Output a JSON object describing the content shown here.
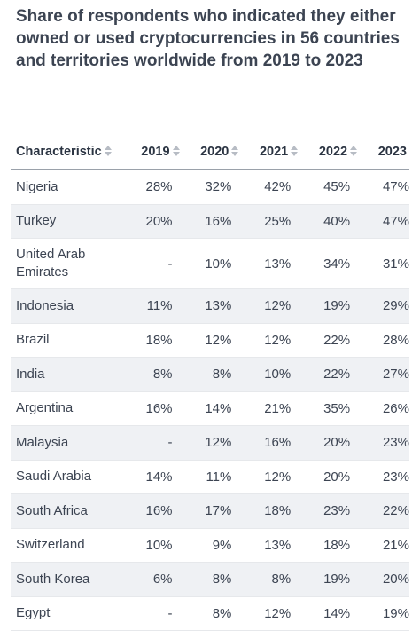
{
  "title": "Share of respondents who indicated they either owned or used cryptocurrencies in 56 countries and territories worldwide from 2019 to 2023",
  "table": {
    "headers": [
      "Characteristic",
      "2019",
      "2020",
      "2021",
      "2022",
      "2023"
    ],
    "rows": [
      [
        "Nigeria",
        "28%",
        "32%",
        "42%",
        "45%",
        "47%"
      ],
      [
        "Turkey",
        "20%",
        "16%",
        "25%",
        "40%",
        "47%"
      ],
      [
        "United Arab Emirates",
        "-",
        "10%",
        "13%",
        "34%",
        "31%"
      ],
      [
        "Indonesia",
        "11%",
        "13%",
        "12%",
        "19%",
        "29%"
      ],
      [
        "Brazil",
        "18%",
        "12%",
        "12%",
        "22%",
        "28%"
      ],
      [
        "India",
        "8%",
        "8%",
        "10%",
        "22%",
        "27%"
      ],
      [
        "Argentina",
        "16%",
        "14%",
        "21%",
        "35%",
        "26%"
      ],
      [
        "Malaysia",
        "-",
        "12%",
        "16%",
        "20%",
        "23%"
      ],
      [
        "Saudi Arabia",
        "14%",
        "11%",
        "12%",
        "20%",
        "23%"
      ],
      [
        "South Africa",
        "16%",
        "17%",
        "18%",
        "23%",
        "22%"
      ],
      [
        "Switzerland",
        "10%",
        "9%",
        "13%",
        "18%",
        "21%"
      ],
      [
        "South Korea",
        "6%",
        "8%",
        "8%",
        "19%",
        "20%"
      ],
      [
        "Egypt",
        "-",
        "8%",
        "12%",
        "14%",
        "19%"
      ]
    ]
  },
  "icons": {
    "sort": "sort-arrows-icon"
  },
  "colors": {
    "title": "#3c4452",
    "text": "#2b3442",
    "stripe": "#eff1f4",
    "header_rule": "#9aa1aa",
    "sort_icon": "#b7bcc4"
  }
}
